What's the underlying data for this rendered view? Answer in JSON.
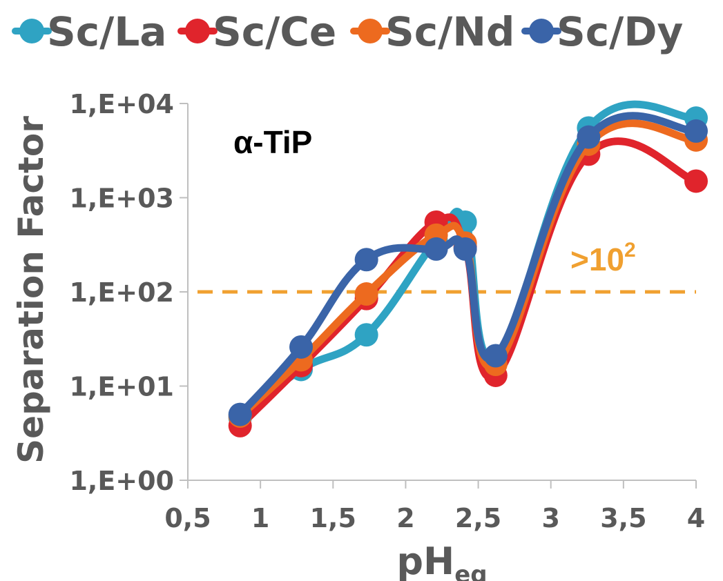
{
  "chart_data": {
    "type": "line",
    "title": "",
    "annotation": "α-TiP",
    "threshold": {
      "value": 100,
      "label_base": ">10",
      "label_exp": "2",
      "color": "#F0A030"
    },
    "xlabel": "pH",
    "xlabel_sub": "eq",
    "ylabel": "Separation Factor",
    "xlim": [
      0.5,
      4.0
    ],
    "ylim": [
      1,
      10000
    ],
    "yscale": "log",
    "xticks": [
      {
        "v": 0.5,
        "label": "0,5"
      },
      {
        "v": 1,
        "label": "1"
      },
      {
        "v": 1.5,
        "label": "1,5"
      },
      {
        "v": 2,
        "label": "2"
      },
      {
        "v": 2.5,
        "label": "2,5"
      },
      {
        "v": 3,
        "label": "3"
      },
      {
        "v": 3.5,
        "label": "3,5"
      },
      {
        "v": 4,
        "label": "4"
      }
    ],
    "yticks": [
      {
        "v": 1,
        "label": "1,E+00"
      },
      {
        "v": 10,
        "label": "1,E+01"
      },
      {
        "v": 100,
        "label": "1,E+02"
      },
      {
        "v": 1000,
        "label": "1,E+03"
      },
      {
        "v": 10000,
        "label": "1,E+04"
      }
    ],
    "legend_position": "top",
    "series": [
      {
        "name": "Sc/La",
        "color": "#2FA3C3",
        "x": [
          0.86,
          1.28,
          1.73,
          2.21,
          2.41,
          2.62,
          3.26,
          4.0
        ],
        "y": [
          4.6,
          15,
          35,
          350,
          550,
          20,
          5500,
          7000
        ]
      },
      {
        "name": "Sc/Ce",
        "color": "#E0242C",
        "x": [
          0.86,
          1.28,
          1.73,
          2.21,
          2.41,
          2.62,
          3.26,
          4.0
        ],
        "y": [
          3.8,
          16.5,
          85,
          550,
          300,
          13,
          2900,
          1500
        ]
      },
      {
        "name": "Sc/Nd",
        "color": "#ED6A1F",
        "x": [
          0.86,
          1.28,
          1.73,
          2.21,
          2.41,
          2.62,
          3.26,
          4.0
        ],
        "y": [
          4.8,
          19,
          95,
          400,
          330,
          17,
          3700,
          4100
        ]
      },
      {
        "name": "Sc/Dy",
        "color": "#3A64A8",
        "x": [
          0.86,
          1.28,
          1.73,
          2.21,
          2.41,
          2.62,
          3.26,
          4.0
        ],
        "y": [
          5.0,
          26,
          220,
          285,
          285,
          21,
          4400,
          5100
        ]
      }
    ]
  }
}
